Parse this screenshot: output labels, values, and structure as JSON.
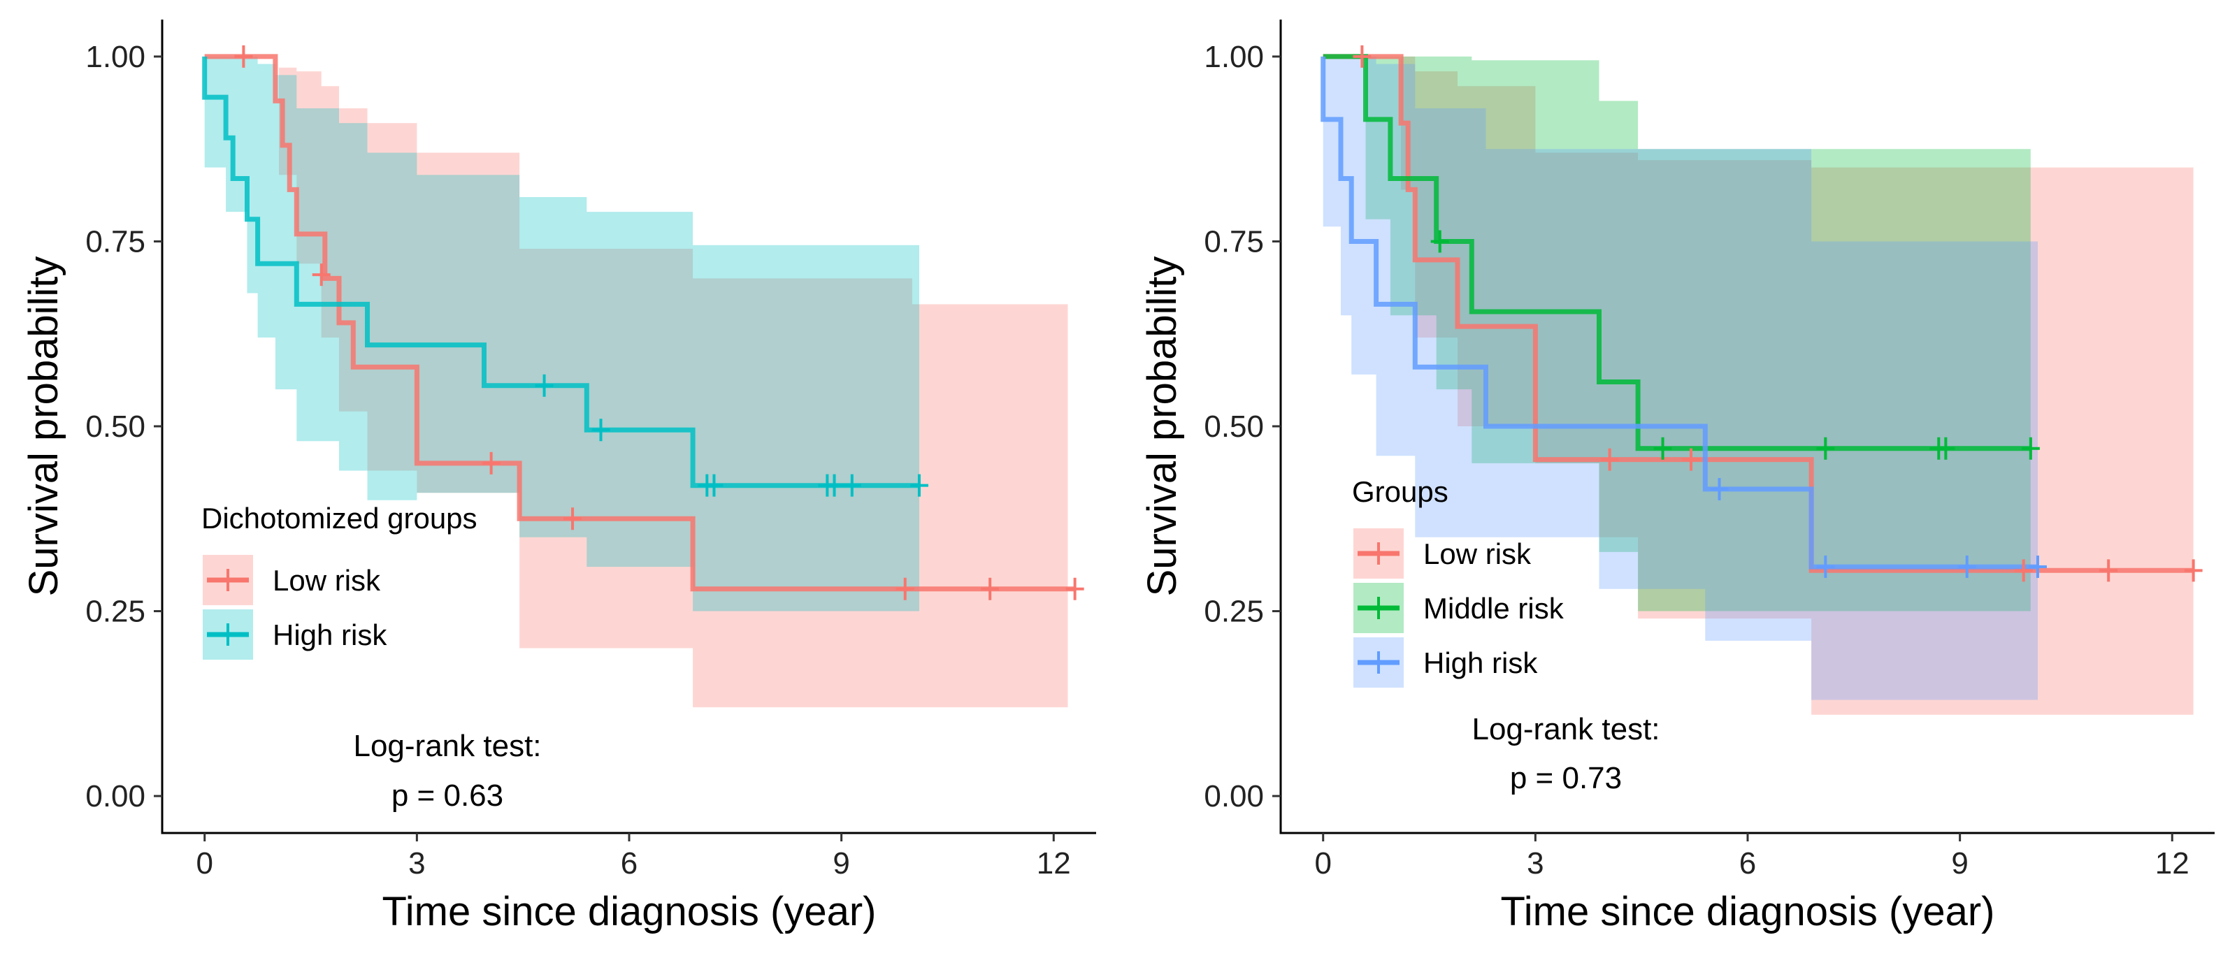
{
  "chart_data": [
    {
      "type": "kaplan-meier",
      "xlabel": "Time since diagnosis (year)",
      "ylabel": "Survival probability",
      "xlim": [
        -0.6,
        12.6
      ],
      "ylim": [
        -0.05,
        1.05
      ],
      "xticks": [
        0,
        3,
        6,
        9,
        12
      ],
      "yticks": [
        0,
        0.25,
        0.5,
        0.75,
        1.0
      ],
      "ytick_labels": [
        "0.00",
        "0.25",
        "0.50",
        "0.75",
        "1.00"
      ],
      "legend": {
        "title": "Dichotomized groups",
        "position": "bottom-left"
      },
      "annotation": {
        "line1": "Log-rank test:",
        "line2": "p = 0.63"
      },
      "series": [
        {
          "name": "Low risk",
          "color": "#F8766D",
          "step": [
            [
              0,
              1.0
            ],
            [
              1.0,
              1.0
            ],
            [
              1.0,
              0.94
            ],
            [
              1.1,
              0.94
            ],
            [
              1.1,
              0.88
            ],
            [
              1.2,
              0.88
            ],
            [
              1.2,
              0.82
            ],
            [
              1.3,
              0.82
            ],
            [
              1.3,
              0.76
            ],
            [
              1.7,
              0.76
            ],
            [
              1.7,
              0.7
            ],
            [
              1.9,
              0.7
            ],
            [
              1.9,
              0.64
            ],
            [
              2.1,
              0.64
            ],
            [
              2.1,
              0.58
            ],
            [
              3.0,
              0.58
            ],
            [
              3.0,
              0.45
            ],
            [
              4.45,
              0.45
            ],
            [
              4.45,
              0.375
            ],
            [
              6.9,
              0.375
            ],
            [
              6.9,
              0.28
            ],
            [
              12.3,
              0.28
            ]
          ],
          "ci": [
            [
              0,
              1.0,
              1.0
            ],
            [
              1.0,
              1.0,
              1.0
            ],
            [
              1.05,
              0.985,
              0.84
            ],
            [
              1.3,
              0.98,
              0.72
            ],
            [
              1.65,
              0.96,
              0.62
            ],
            [
              1.9,
              0.93,
              0.52
            ],
            [
              2.3,
              0.91,
              0.44
            ],
            [
              3.0,
              0.87,
              0.41
            ],
            [
              4.45,
              0.74,
              0.2
            ],
            [
              6.9,
              0.7,
              0.12
            ],
            [
              10.0,
              0.665,
              0.12
            ],
            [
              12.2,
              0.665,
              0.12
            ]
          ],
          "censor": [
            [
              0.55,
              1.0
            ],
            [
              1.65,
              0.705
            ],
            [
              4.05,
              0.45
            ],
            [
              5.2,
              0.375
            ],
            [
              9.9,
              0.28
            ],
            [
              11.1,
              0.28
            ],
            [
              12.3,
              0.28
            ]
          ]
        },
        {
          "name": "High risk",
          "color": "#00BFC4",
          "step": [
            [
              0,
              1.0
            ],
            [
              0,
              0.945
            ],
            [
              0.3,
              0.945
            ],
            [
              0.3,
              0.89
            ],
            [
              0.4,
              0.89
            ],
            [
              0.4,
              0.835
            ],
            [
              0.6,
              0.835
            ],
            [
              0.6,
              0.78
            ],
            [
              0.75,
              0.78
            ],
            [
              0.75,
              0.72
            ],
            [
              1.3,
              0.72
            ],
            [
              1.3,
              0.665
            ],
            [
              2.3,
              0.665
            ],
            [
              2.3,
              0.61
            ],
            [
              3.95,
              0.61
            ],
            [
              3.95,
              0.555
            ],
            [
              5.4,
              0.555
            ],
            [
              5.4,
              0.495
            ],
            [
              6.9,
              0.495
            ],
            [
              6.9,
              0.42
            ],
            [
              10.1,
              0.42
            ]
          ],
          "ci": [
            [
              0,
              1.0,
              0.85
            ],
            [
              0.3,
              1.0,
              0.79
            ],
            [
              0.6,
              1.0,
              0.68
            ],
            [
              0.75,
              0.99,
              0.62
            ],
            [
              1.0,
              0.975,
              0.55
            ],
            [
              1.3,
              0.93,
              0.48
            ],
            [
              1.9,
              0.91,
              0.44
            ],
            [
              2.3,
              0.87,
              0.4
            ],
            [
              3.0,
              0.84,
              0.41
            ],
            [
              4.45,
              0.81,
              0.35
            ],
            [
              5.4,
              0.79,
              0.31
            ],
            [
              6.9,
              0.745,
              0.25
            ],
            [
              10.1,
              0.745,
              0.25
            ]
          ],
          "censor": [
            [
              4.8,
              0.555
            ],
            [
              5.6,
              0.495
            ],
            [
              7.1,
              0.42
            ],
            [
              7.2,
              0.42
            ],
            [
              8.8,
              0.42
            ],
            [
              8.9,
              0.42
            ],
            [
              9.15,
              0.42
            ],
            [
              10.1,
              0.42
            ]
          ]
        }
      ]
    },
    {
      "type": "kaplan-meier",
      "xlabel": "Time since diagnosis (year)",
      "ylabel": "Survival probability",
      "xlim": [
        -0.6,
        12.6
      ],
      "ylim": [
        -0.05,
        1.05
      ],
      "xticks": [
        0,
        3,
        6,
        9,
        12
      ],
      "yticks": [
        0,
        0.25,
        0.5,
        0.75,
        1.0
      ],
      "ytick_labels": [
        "0.00",
        "0.25",
        "0.50",
        "0.75",
        "1.00"
      ],
      "legend": {
        "title": "Groups",
        "position": "bottom-left"
      },
      "annotation": {
        "line1": "Log-rank test:",
        "line2": "p = 0.73"
      },
      "series": [
        {
          "name": "Low risk",
          "color": "#F8766D",
          "step": [
            [
              0,
              1.0
            ],
            [
              1.1,
              1.0
            ],
            [
              1.1,
              0.91
            ],
            [
              1.2,
              0.91
            ],
            [
              1.2,
              0.82
            ],
            [
              1.3,
              0.82
            ],
            [
              1.3,
              0.725
            ],
            [
              1.9,
              0.725
            ],
            [
              1.9,
              0.635
            ],
            [
              3.0,
              0.635
            ],
            [
              3.0,
              0.455
            ],
            [
              6.9,
              0.455
            ],
            [
              6.9,
              0.305
            ],
            [
              12.3,
              0.305
            ]
          ],
          "ci": [
            [
              0,
              1.0,
              1.0
            ],
            [
              1.1,
              1.0,
              0.82
            ],
            [
              1.3,
              0.98,
              0.62
            ],
            [
              1.9,
              0.96,
              0.5
            ],
            [
              3.0,
              0.87,
              0.45
            ],
            [
              3.9,
              0.87,
              0.35
            ],
            [
              4.45,
              0.86,
              0.24
            ],
            [
              6.9,
              0.85,
              0.11
            ],
            [
              12.3,
              0.85,
              0.11
            ]
          ],
          "censor": [
            [
              0.55,
              1.0
            ],
            [
              4.05,
              0.455
            ],
            [
              5.2,
              0.455
            ],
            [
              9.9,
              0.305
            ],
            [
              11.1,
              0.305
            ],
            [
              12.3,
              0.305
            ]
          ]
        },
        {
          "name": "Middle risk",
          "color": "#00BA38",
          "step": [
            [
              0,
              1.0
            ],
            [
              0.6,
              1.0
            ],
            [
              0.6,
              0.915
            ],
            [
              0.95,
              0.915
            ],
            [
              0.95,
              0.835
            ],
            [
              1.6,
              0.835
            ],
            [
              1.6,
              0.75
            ],
            [
              2.1,
              0.75
            ],
            [
              2.1,
              0.655
            ],
            [
              3.9,
              0.655
            ],
            [
              3.9,
              0.56
            ],
            [
              4.45,
              0.56
            ],
            [
              4.45,
              0.47
            ],
            [
              10.0,
              0.47
            ]
          ],
          "ci": [
            [
              0,
              1.0,
              1.0
            ],
            [
              0.6,
              1.0,
              0.78
            ],
            [
              0.95,
              1.0,
              0.65
            ],
            [
              1.6,
              1.0,
              0.55
            ],
            [
              2.1,
              0.995,
              0.45
            ],
            [
              3.9,
              0.94,
              0.33
            ],
            [
              4.45,
              0.875,
              0.25
            ],
            [
              10.0,
              0.875,
              0.25
            ]
          ],
          "censor": [
            [
              1.65,
              0.75
            ],
            [
              4.8,
              0.47
            ],
            [
              7.1,
              0.47
            ],
            [
              8.7,
              0.47
            ],
            [
              8.8,
              0.47
            ],
            [
              10.0,
              0.47
            ]
          ]
        },
        {
          "name": "High risk",
          "color": "#619CFF",
          "step": [
            [
              0,
              1.0
            ],
            [
              0,
              0.915
            ],
            [
              0.25,
              0.915
            ],
            [
              0.25,
              0.835
            ],
            [
              0.4,
              0.835
            ],
            [
              0.4,
              0.75
            ],
            [
              0.75,
              0.75
            ],
            [
              0.75,
              0.665
            ],
            [
              1.3,
              0.665
            ],
            [
              1.3,
              0.58
            ],
            [
              2.3,
              0.58
            ],
            [
              2.3,
              0.5
            ],
            [
              5.4,
              0.5
            ],
            [
              5.4,
              0.415
            ],
            [
              6.9,
              0.415
            ],
            [
              6.9,
              0.31
            ],
            [
              10.1,
              0.31
            ]
          ],
          "ci": [
            [
              0,
              1.0,
              0.77
            ],
            [
              0.25,
              1.0,
              0.65
            ],
            [
              0.4,
              1.0,
              0.57
            ],
            [
              0.75,
              0.99,
              0.46
            ],
            [
              1.3,
              0.93,
              0.35
            ],
            [
              2.3,
              0.875,
              0.35
            ],
            [
              3.9,
              0.875,
              0.28
            ],
            [
              5.4,
              0.875,
              0.21
            ],
            [
              6.9,
              0.75,
              0.13
            ],
            [
              10.1,
              0.75,
              0.13
            ]
          ],
          "censor": [
            [
              5.6,
              0.415
            ],
            [
              7.1,
              0.31
            ],
            [
              9.1,
              0.31
            ],
            [
              10.1,
              0.31
            ]
          ]
        }
      ]
    }
  ]
}
